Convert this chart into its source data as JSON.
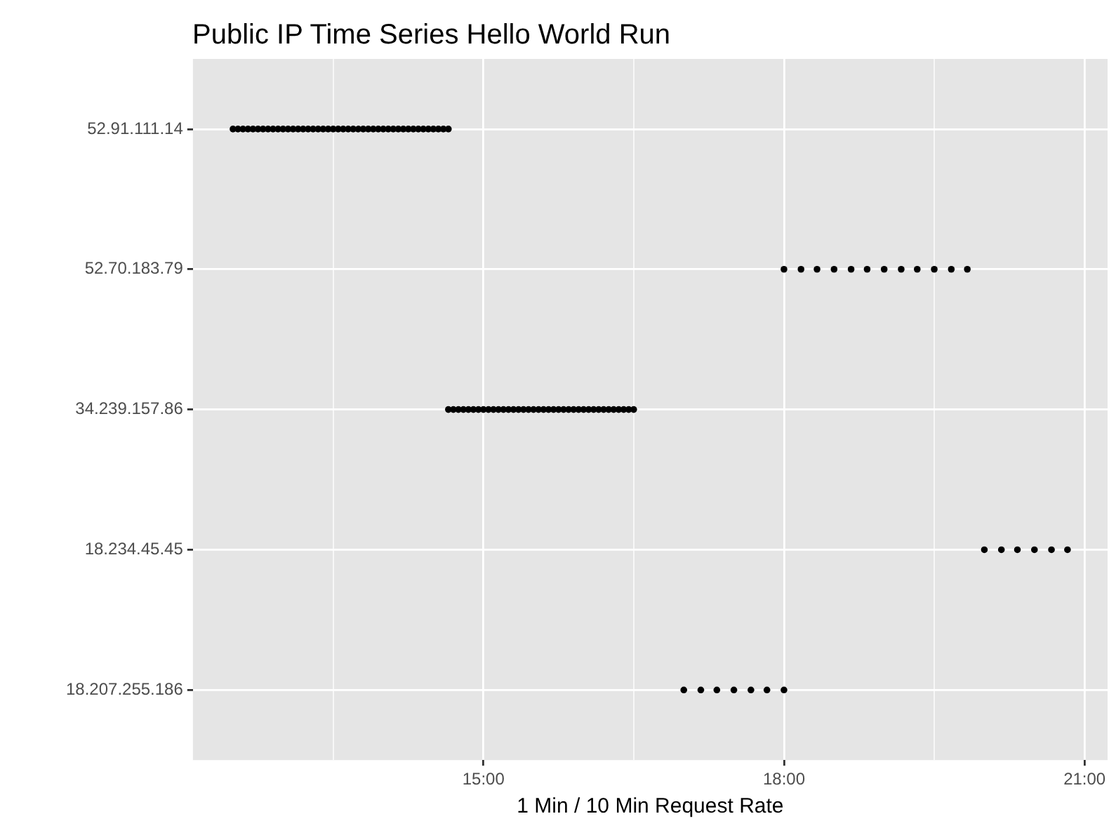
{
  "chart_data": {
    "type": "scatter",
    "orientation": "horizontal",
    "title": "Public IP Time Series Hello World Run",
    "xlabel": "1 Min / 10 Min Request Rate",
    "categories": [
      "52.91.111.14",
      "52.70.183.79",
      "34.239.157.86",
      "18.234.45.45",
      "18.207.255.186"
    ],
    "xlim": [
      12.1,
      21.23
    ],
    "xticks": [
      {
        "value": 13.5,
        "label": null
      },
      {
        "value": 15,
        "label": "15:00"
      },
      {
        "value": 16.5,
        "label": null
      },
      {
        "value": 18,
        "label": "18:00"
      },
      {
        "value": 19.5,
        "label": null
      },
      {
        "value": 21,
        "label": "21:00"
      }
    ],
    "grid": true,
    "legend": false,
    "marker": "circle",
    "series": [
      {
        "color": "#000000",
        "values": [
          12.5,
          12.55,
          12.6,
          12.65,
          12.7,
          12.75,
          12.8,
          12.85,
          12.9,
          12.95,
          13.0,
          13.05,
          13.1,
          13.15,
          13.2,
          13.25,
          13.3,
          13.35,
          13.4,
          13.45,
          13.5,
          13.55,
          13.6,
          13.65,
          13.7,
          13.75,
          13.8,
          13.85,
          13.9,
          13.95,
          14.0,
          14.05,
          14.1,
          14.15,
          14.2,
          14.25,
          14.3,
          14.35,
          14.4,
          14.45,
          14.5,
          14.55,
          14.6,
          14.65
        ],
        "x": [
          "52.91.111.14",
          "52.91.111.14",
          "52.91.111.14",
          "52.91.111.14",
          "52.91.111.14",
          "52.91.111.14",
          "52.91.111.14",
          "52.91.111.14",
          "52.91.111.14",
          "52.91.111.14",
          "52.91.111.14",
          "52.91.111.14",
          "52.91.111.14",
          "52.91.111.14",
          "52.91.111.14",
          "52.91.111.14",
          "52.91.111.14",
          "52.91.111.14",
          "52.91.111.14",
          "52.91.111.14",
          "52.91.111.14",
          "52.91.111.14",
          "52.91.111.14",
          "52.91.111.14",
          "52.91.111.14",
          "52.91.111.14",
          "52.91.111.14",
          "52.91.111.14",
          "52.91.111.14",
          "52.91.111.14",
          "52.91.111.14",
          "52.91.111.14",
          "52.91.111.14",
          "52.91.111.14",
          "52.91.111.14",
          "52.91.111.14",
          "52.91.111.14",
          "52.91.111.14",
          "52.91.111.14",
          "52.91.111.14",
          "52.91.111.14",
          "52.91.111.14",
          "52.91.111.14",
          "52.91.111.14"
        ]
      },
      {
        "color": "#000000",
        "values": [
          18.0,
          18.17,
          18.33,
          18.5,
          18.67,
          18.83,
          19.0,
          19.17,
          19.33,
          19.5,
          19.67,
          19.83
        ],
        "x": [
          "52.70.183.79",
          "52.70.183.79",
          "52.70.183.79",
          "52.70.183.79",
          "52.70.183.79",
          "52.70.183.79",
          "52.70.183.79",
          "52.70.183.79",
          "52.70.183.79",
          "52.70.183.79",
          "52.70.183.79",
          "52.70.183.79"
        ]
      },
      {
        "color": "#000000",
        "values": [
          14.65,
          14.7,
          14.75,
          14.8,
          14.85,
          14.9,
          14.95,
          15.0,
          15.05,
          15.1,
          15.15,
          15.2,
          15.25,
          15.3,
          15.35,
          15.4,
          15.45,
          15.5,
          15.55,
          15.6,
          15.65,
          15.7,
          15.75,
          15.8,
          15.85,
          15.9,
          15.95,
          16.0,
          16.05,
          16.1,
          16.15,
          16.2,
          16.25,
          16.3,
          16.35,
          16.4,
          16.45,
          16.5
        ],
        "x": [
          "34.239.157.86",
          "34.239.157.86",
          "34.239.157.86",
          "34.239.157.86",
          "34.239.157.86",
          "34.239.157.86",
          "34.239.157.86",
          "34.239.157.86",
          "34.239.157.86",
          "34.239.157.86",
          "34.239.157.86",
          "34.239.157.86",
          "34.239.157.86",
          "34.239.157.86",
          "34.239.157.86",
          "34.239.157.86",
          "34.239.157.86",
          "34.239.157.86",
          "34.239.157.86",
          "34.239.157.86",
          "34.239.157.86",
          "34.239.157.86",
          "34.239.157.86",
          "34.239.157.86",
          "34.239.157.86",
          "34.239.157.86",
          "34.239.157.86",
          "34.239.157.86",
          "34.239.157.86",
          "34.239.157.86",
          "34.239.157.86",
          "34.239.157.86",
          "34.239.157.86",
          "34.239.157.86",
          "34.239.157.86",
          "34.239.157.86",
          "34.239.157.86",
          "34.239.157.86"
        ]
      },
      {
        "color": "#000000",
        "values": [
          20.0,
          20.17,
          20.33,
          20.5,
          20.67,
          20.83
        ],
        "x": [
          "18.234.45.45",
          "18.234.45.45",
          "18.234.45.45",
          "18.234.45.45",
          "18.234.45.45",
          "18.234.45.45"
        ]
      },
      {
        "color": "#000000",
        "values": [
          17.0,
          17.17,
          17.33,
          17.5,
          17.67,
          17.83,
          18.0
        ],
        "x": [
          "18.207.255.186",
          "18.207.255.186",
          "18.207.255.186",
          "18.207.255.186",
          "18.207.255.186",
          "18.207.255.186",
          "18.207.255.186"
        ]
      }
    ]
  }
}
